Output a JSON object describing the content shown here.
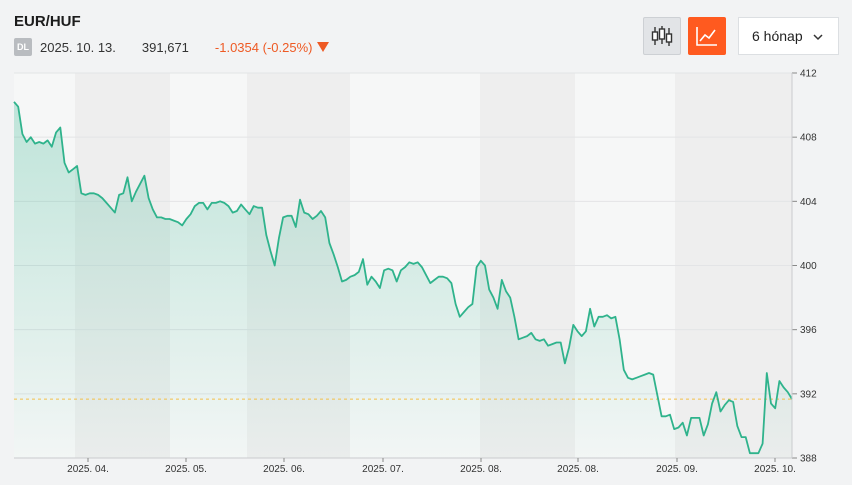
{
  "header": {
    "title": "EUR/HUF",
    "badge": "DL",
    "date": "2025. 10. 13.",
    "price": "391,671",
    "change": "-1.0354 (-0.25%)",
    "change_color": "#ee5a24"
  },
  "controls": {
    "candlestick_icon": "candlestick-icon",
    "line_icon": "line-chart-icon",
    "period_label": "6 hónap",
    "accent": "#ff5a1f"
  },
  "chart_data": {
    "type": "area",
    "line_color": "#2fb38c",
    "reference_line": 391.671,
    "ylim": [
      388,
      412
    ],
    "yticks": [
      388,
      392,
      396,
      400,
      404,
      408,
      412
    ],
    "xticks": [
      "2025. 04.",
      "2025. 05.",
      "2025. 06.",
      "2025. 07.",
      "2025. 08.",
      "2025. 08.",
      "2025. 09.",
      "2025. 10."
    ],
    "values": [
      410.2,
      409.9,
      408.2,
      407.7,
      408.0,
      407.6,
      407.7,
      407.6,
      407.8,
      407.4,
      408.3,
      408.6,
      406.4,
      405.8,
      406.0,
      406.2,
      404.5,
      404.4,
      404.5,
      404.5,
      404.4,
      404.2,
      403.9,
      403.6,
      403.3,
      404.4,
      404.5,
      405.5,
      404.0,
      404.6,
      405.1,
      405.6,
      404.2,
      403.5,
      403.0,
      403.0,
      402.9,
      402.9,
      402.8,
      402.7,
      402.5,
      402.9,
      403.2,
      403.7,
      403.9,
      403.9,
      403.5,
      403.9,
      403.9,
      404.0,
      403.9,
      403.7,
      403.3,
      403.4,
      403.8,
      403.5,
      403.2,
      403.7,
      403.6,
      403.6,
      401.9,
      400.9,
      400.0,
      401.7,
      403.0,
      403.1,
      403.1,
      402.4,
      404.1,
      403.3,
      403.2,
      402.9,
      403.1,
      403.4,
      403.0,
      401.4,
      400.7,
      399.9,
      399.0,
      399.1,
      399.3,
      399.4,
      399.6,
      400.4,
      398.8,
      399.3,
      399.0,
      398.6,
      399.7,
      399.8,
      399.7,
      399.0,
      399.7,
      399.9,
      400.2,
      400.1,
      400.2,
      399.9,
      399.4,
      398.9,
      399.1,
      399.3,
      399.3,
      399.2,
      398.9,
      397.6,
      396.8,
      397.1,
      397.4,
      397.6,
      399.9,
      400.3,
      400.0,
      398.5,
      398.0,
      397.3,
      399.1,
      398.4,
      398.0,
      396.8,
      395.4,
      395.5,
      395.6,
      395.8,
      395.4,
      395.3,
      395.4,
      395.0,
      395.1,
      395.2,
      395.2,
      393.9,
      394.9,
      396.3,
      395.9,
      395.6,
      395.9,
      397.3,
      396.2,
      396.8,
      396.8,
      396.9,
      396.7,
      396.8,
      395.4,
      393.5,
      393.0,
      392.9,
      393.0,
      393.1,
      393.2,
      393.3,
      393.2,
      391.9,
      390.6,
      390.6,
      390.7,
      389.8,
      389.9,
      390.2,
      389.4,
      390.5,
      390.5,
      390.5,
      389.4,
      390.1,
      391.4,
      392.1,
      390.9,
      391.3,
      391.6,
      391.5,
      390.0,
      389.3,
      389.3,
      388.3,
      388.3,
      388.3,
      388.9,
      393.3,
      391.4,
      391.1,
      392.8,
      392.4,
      392.1,
      391.671
    ]
  }
}
